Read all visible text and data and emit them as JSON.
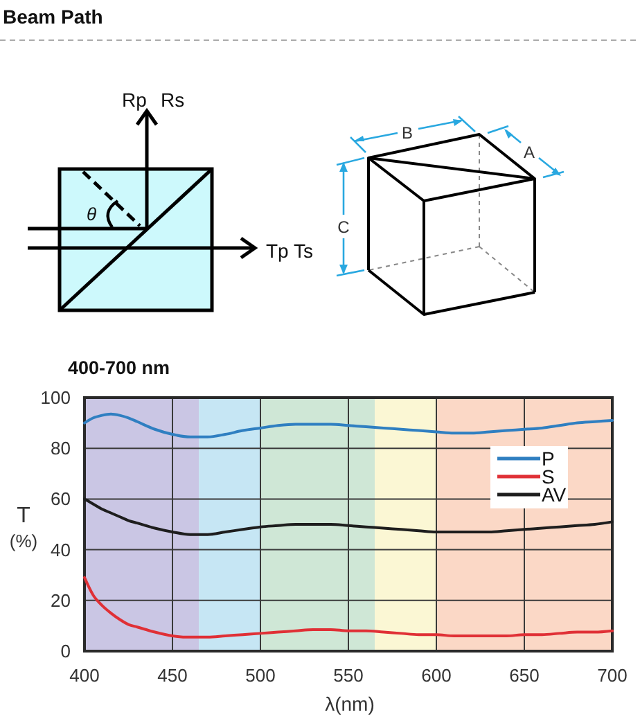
{
  "chart_data": [
    {
      "type": "other",
      "title": "Beam Path",
      "annotations": [
        "Rp",
        "Rs",
        "θ",
        "Tp Ts",
        "B",
        "A",
        "C"
      ]
    },
    {
      "type": "line",
      "title": "400-700 nm",
      "xlabel": "λ(nm)",
      "ylabel": "T (%)",
      "x": [
        400,
        405,
        410,
        415,
        420,
        425,
        430,
        440,
        450,
        460,
        470,
        480,
        490,
        500,
        510,
        520,
        530,
        540,
        550,
        560,
        570,
        580,
        590,
        600,
        610,
        620,
        630,
        640,
        650,
        660,
        670,
        680,
        690,
        700
      ],
      "series": [
        {
          "name": "P",
          "color": "#2f7fc1",
          "values": [
            90,
            92,
            93,
            93.5,
            93,
            92,
            90.5,
            87.5,
            85.5,
            84.5,
            84.5,
            85.5,
            87,
            88,
            89,
            89.5,
            89.5,
            89.5,
            89,
            88.5,
            88,
            87.5,
            87,
            86.5,
            86,
            86,
            86.5,
            87,
            87.5,
            88,
            89,
            90,
            90.5,
            91
          ]
        },
        {
          "name": "S",
          "color": "#e03036",
          "values": [
            29,
            22,
            18,
            15,
            12.5,
            10.5,
            9.5,
            7.5,
            6,
            5.5,
            5.5,
            6,
            6.5,
            7,
            7.5,
            8,
            8.5,
            8.5,
            8,
            8,
            7.5,
            7,
            6.5,
            6.5,
            6,
            6,
            6,
            6,
            6.5,
            6.5,
            7,
            7.5,
            7.5,
            8
          ]
        },
        {
          "name": "AV",
          "color": "#1e1e1e",
          "values": [
            60,
            58,
            56,
            54.5,
            53,
            51.5,
            50.5,
            48.5,
            47,
            46,
            46,
            47,
            48,
            49,
            49.5,
            50,
            50,
            50,
            49.5,
            49,
            48.5,
            48,
            47.5,
            47,
            47,
            47,
            47,
            47.5,
            48,
            48.5,
            49,
            49.5,
            50,
            51
          ]
        }
      ],
      "xlim": [
        400,
        700
      ],
      "ylim": [
        0,
        100
      ],
      "xticks": [
        400,
        450,
        500,
        550,
        600,
        650,
        700
      ],
      "yticks": [
        0,
        20,
        40,
        60,
        80,
        100
      ],
      "grid": true,
      "legend": "top right",
      "bands": [
        {
          "axis": "x",
          "from": 400,
          "to": 465,
          "color": "#cac6e4"
        },
        {
          "axis": "x",
          "from": 465,
          "to": 500,
          "color": "#c6e6f4"
        },
        {
          "axis": "x",
          "from": 500,
          "to": 565,
          "color": "#cfe7d6"
        },
        {
          "axis": "x",
          "from": 565,
          "to": 600,
          "color": "#fbf7d4"
        },
        {
          "axis": "x",
          "from": 600,
          "to": 700,
          "color": "#fbd8c6"
        }
      ]
    }
  ]
}
